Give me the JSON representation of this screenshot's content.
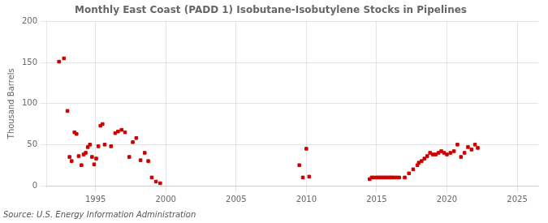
{
  "chart_data": {
    "type": "scatter",
    "title": "Monthly East Coast (PADD 1) Isobutane-Isobutylene Stocks in Pipelines",
    "ylabel": "Thousand Barrels",
    "annotations": [
      "Source: U.S. Energy Information Administration"
    ],
    "x": [
      1992.4,
      1992.75,
      1993.0,
      1993.15,
      1993.3,
      1993.5,
      1993.65,
      1993.8,
      1994.0,
      1994.15,
      1994.3,
      1994.45,
      1994.6,
      1994.75,
      1994.9,
      1995.05,
      1995.2,
      1995.35,
      1995.5,
      1995.65,
      1996.1,
      1996.4,
      1996.6,
      1996.85,
      1997.1,
      1997.4,
      1997.65,
      1997.9,
      1998.2,
      1998.5,
      1998.75,
      1999.0,
      1999.3,
      1999.6,
      2009.5,
      2009.75,
      2010.0,
      2010.2,
      2014.5,
      2014.65,
      2014.8,
      2015.0,
      2015.15,
      2015.3,
      2015.45,
      2015.6,
      2015.75,
      2015.9,
      2016.05,
      2016.2,
      2016.4,
      2016.6,
      2017.0,
      2017.3,
      2017.6,
      2017.9,
      2018.0,
      2018.2,
      2018.4,
      2018.6,
      2018.8,
      2019.0,
      2019.2,
      2019.4,
      2019.6,
      2019.8,
      2020.0,
      2020.25,
      2020.5,
      2020.75,
      2021.0,
      2021.25,
      2021.5,
      2021.75,
      2022.0,
      2022.2
    ],
    "values": [
      151,
      155,
      91,
      35,
      30,
      65,
      63,
      36,
      25,
      38,
      40,
      47,
      50,
      35,
      26,
      33,
      48,
      73,
      75,
      50,
      48,
      64,
      66,
      68,
      65,
      35,
      53,
      58,
      31,
      40,
      30,
      10,
      5,
      3,
      25,
      10,
      45,
      11,
      8,
      10,
      10,
      10,
      10,
      10,
      10,
      10,
      10,
      10,
      10,
      10,
      10,
      10,
      10,
      15,
      20,
      25,
      28,
      30,
      33,
      36,
      40,
      38,
      38,
      40,
      42,
      40,
      38,
      40,
      42,
      50,
      35,
      40,
      47,
      44,
      50,
      46
    ],
    "color": "#cc0000",
    "marker": "square",
    "xlim": [
      1991.5,
      2026.5
    ],
    "ylim": [
      0,
      200
    ],
    "xticks": [
      1995,
      2000,
      2005,
      2010,
      2015,
      2020,
      2025
    ],
    "yticks": [
      0,
      50,
      100,
      150,
      200
    ],
    "grid": true
  }
}
